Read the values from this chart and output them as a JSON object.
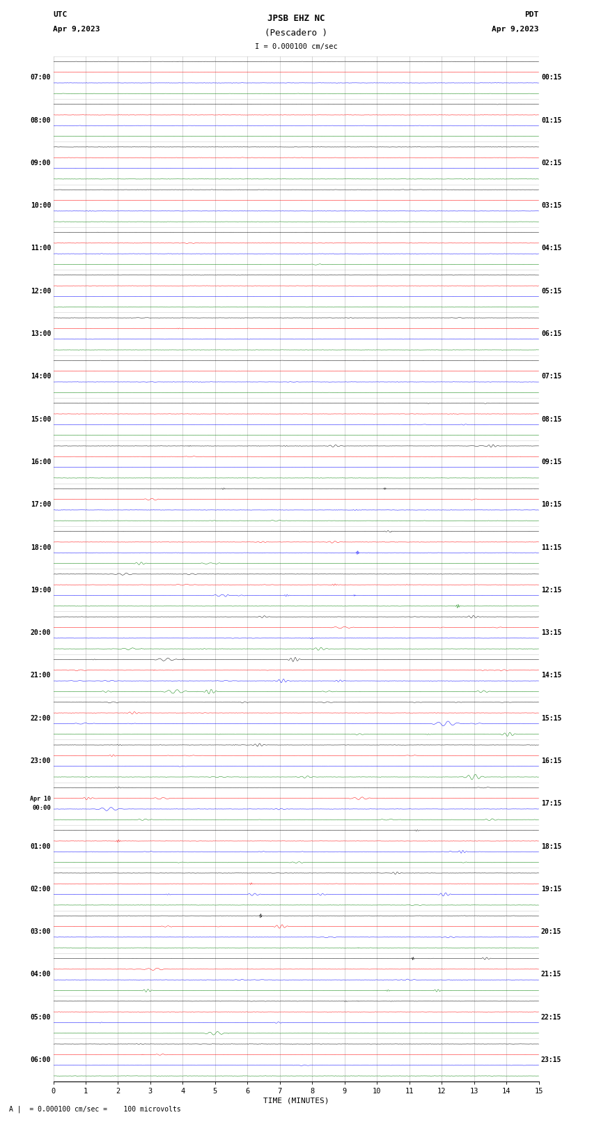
{
  "title_line1": "JPSB EHZ NC",
  "title_line2": "(Pescadero )",
  "scale_label": "I = 0.000100 cm/sec",
  "utc_label": "UTC",
  "utc_date": "Apr 9,2023",
  "pdt_label": "PDT",
  "pdt_date": "Apr 9,2023",
  "xlabel": "TIME (MINUTES)",
  "bottom_note": "A |  = 0.000100 cm/sec =    100 microvolts",
  "left_times": [
    "07:00",
    "08:00",
    "09:00",
    "10:00",
    "11:00",
    "12:00",
    "13:00",
    "14:00",
    "15:00",
    "16:00",
    "17:00",
    "18:00",
    "19:00",
    "20:00",
    "21:00",
    "22:00",
    "23:00",
    "Apr 10\n00:00",
    "01:00",
    "02:00",
    "03:00",
    "04:00",
    "05:00",
    "06:00"
  ],
  "right_times": [
    "00:15",
    "01:15",
    "02:15",
    "03:15",
    "04:15",
    "05:15",
    "06:15",
    "07:15",
    "08:15",
    "09:15",
    "10:15",
    "11:15",
    "12:15",
    "13:15",
    "14:15",
    "15:15",
    "16:15",
    "17:15",
    "18:15",
    "19:15",
    "20:15",
    "21:15",
    "22:15",
    "23:15"
  ],
  "n_rows": 24,
  "traces_per_row": 4,
  "colors": [
    "black",
    "red",
    "blue",
    "green"
  ],
  "bg_color": "white",
  "fig_width": 8.5,
  "fig_height": 16.13,
  "xmin": 0,
  "xmax": 15,
  "xticks": [
    0,
    1,
    2,
    3,
    4,
    5,
    6,
    7,
    8,
    9,
    10,
    11,
    12,
    13,
    14,
    15
  ],
  "noise_base": 0.04,
  "trace_scale": 0.1,
  "grid_color": "#888888",
  "grid_lw": 0.4
}
